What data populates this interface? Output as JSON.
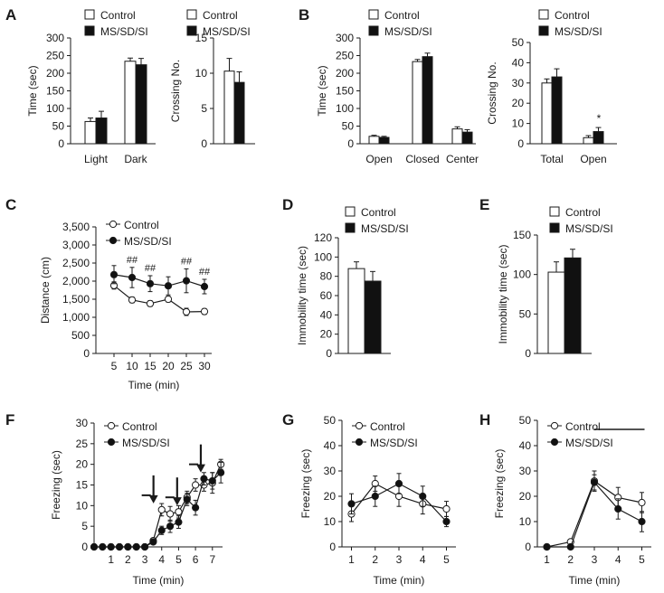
{
  "colors": {
    "control": "#ffffff",
    "treated": "#111111",
    "stroke": "#1a1a1a"
  },
  "chart_data": [
    {
      "id": "A1",
      "panel": "A",
      "type": "bar",
      "ylabel": "Time (sec)",
      "ylim": [
        0,
        300
      ],
      "yticks": [
        "0",
        "50",
        "100",
        "150",
        "200",
        "250",
        "300"
      ],
      "categories": [
        "Light",
        "Dark"
      ],
      "legend": [
        "Control",
        "MS/SD/SI"
      ],
      "series": [
        {
          "name": "Control",
          "values": [
            63,
            234
          ],
          "errors": [
            10,
            9
          ]
        },
        {
          "name": "MS/SD/SI",
          "values": [
            73,
            224
          ],
          "errors": [
            19,
            18
          ]
        }
      ]
    },
    {
      "id": "A2",
      "type": "bar",
      "ylabel": "Crossing No.",
      "ylim": [
        0,
        15
      ],
      "yticks": [
        "0",
        "5",
        "10",
        "15"
      ],
      "categories": [
        ""
      ],
      "legend": [
        "Control",
        "MS/SD/SI"
      ],
      "series": [
        {
          "name": "Control",
          "values": [
            10.3
          ],
          "errors": [
            1.8
          ]
        },
        {
          "name": "MS/SD/SI",
          "values": [
            8.7
          ],
          "errors": [
            1.5
          ]
        }
      ]
    },
    {
      "id": "B1",
      "panel": "B",
      "type": "bar",
      "ylabel": "Time (sec)",
      "ylim": [
        0,
        300
      ],
      "yticks": [
        "0",
        "50",
        "100",
        "150",
        "200",
        "250",
        "300"
      ],
      "categories": [
        "Open",
        "Closed",
        "Center"
      ],
      "legend": [
        "Control",
        "MS/SD/SI"
      ],
      "series": [
        {
          "name": "Control",
          "values": [
            21,
            233,
            42
          ],
          "errors": [
            3,
            6,
            6
          ]
        },
        {
          "name": "MS/SD/SI",
          "values": [
            18,
            247,
            33
          ],
          "errors": [
            3,
            10,
            7
          ]
        }
      ]
    },
    {
      "id": "B2",
      "type": "bar",
      "ylabel": "Crossing No.",
      "ylim": [
        0,
        50
      ],
      "yticks": [
        "0",
        "10",
        "20",
        "30",
        "40",
        "50"
      ],
      "categories": [
        "Total",
        "Open"
      ],
      "legend": [
        "Control",
        "MS/SD/SI"
      ],
      "annotations": [
        {
          "text": "*",
          "category": "Open"
        }
      ],
      "series": [
        {
          "name": "Control",
          "values": [
            30,
            3
          ],
          "errors": [
            2,
            1
          ]
        },
        {
          "name": "MS/SD/SI",
          "values": [
            33,
            6
          ],
          "errors": [
            4,
            2
          ]
        }
      ]
    },
    {
      "id": "C",
      "panel": "C",
      "type": "line",
      "xlabel": "Time (min)",
      "ylabel": "Distance (cm)",
      "ylim": [
        0,
        3500
      ],
      "xlim": [
        0,
        32
      ],
      "yticks": [
        "0",
        "500",
        "1,000",
        "1,500",
        "2,000",
        "2,500",
        "3,000",
        "3,500"
      ],
      "x": [
        5,
        10,
        15,
        20,
        25,
        30
      ],
      "xticks": [
        "5",
        "10",
        "15",
        "20",
        "25",
        "30"
      ],
      "legend": [
        "Control",
        "MS/SD/SI"
      ],
      "annotations": [
        "##",
        "##",
        "##",
        "##"
      ],
      "annotation_x": [
        10,
        15,
        25,
        30
      ],
      "series": [
        {
          "name": "Control",
          "values": [
            1880,
            1480,
            1380,
            1500,
            1150,
            1160
          ],
          "errors": [
            100,
            80,
            80,
            80,
            100,
            80
          ]
        },
        {
          "name": "MS/SD/SI",
          "values": [
            2180,
            2100,
            1930,
            1870,
            2010,
            1850
          ],
          "errors": [
            250,
            280,
            220,
            250,
            330,
            200
          ]
        }
      ]
    },
    {
      "id": "D",
      "panel": "D",
      "type": "bar",
      "ylabel": "Immobility time (sec)",
      "ylim": [
        0,
        120
      ],
      "yticks": [
        "0",
        "20",
        "40",
        "60",
        "80",
        "100",
        "120"
      ],
      "categories": [
        ""
      ],
      "legend": [
        "Control",
        "MS/SD/SI"
      ],
      "series": [
        {
          "name": "Control",
          "values": [
            88
          ],
          "errors": [
            7
          ]
        },
        {
          "name": "MS/SD/SI",
          "values": [
            75
          ],
          "errors": [
            10
          ]
        }
      ]
    },
    {
      "id": "E",
      "panel": "E",
      "type": "bar",
      "ylabel": "Immobility time (sec)",
      "ylim": [
        0,
        150
      ],
      "yticks": [
        "0",
        "50",
        "100",
        "150"
      ],
      "categories": [
        ""
      ],
      "legend": [
        "Control",
        "MS/SD/SI"
      ],
      "series": [
        {
          "name": "Control",
          "values": [
            103
          ],
          "errors": [
            13
          ]
        },
        {
          "name": "MS/SD/SI",
          "values": [
            121
          ],
          "errors": [
            11
          ]
        }
      ]
    },
    {
      "id": "F",
      "panel": "F",
      "type": "line",
      "xlabel": "Time (min)",
      "ylabel": "Freezing (sec)",
      "ylim": [
        0,
        30
      ],
      "xlim": [
        0,
        7.6
      ],
      "yticks": [
        "0",
        "5",
        "10",
        "15",
        "20",
        "25",
        "30"
      ],
      "xtick_values": [
        1,
        2,
        3,
        4,
        5,
        6,
        7
      ],
      "xticks": [
        "1",
        "2",
        "3",
        "4",
        "5",
        "6",
        "7"
      ],
      "legend": [
        "Control",
        "MS/SD/SI"
      ],
      "arrows_at": [
        3.3,
        4.7,
        6.1
      ],
      "x": [
        0,
        0.5,
        1,
        1.5,
        2,
        2.5,
        3,
        3.5,
        4,
        4.5,
        5,
        5.5,
        6,
        6.5,
        7,
        7.5
      ],
      "series": [
        {
          "name": "Control",
          "values": [
            0,
            0,
            0,
            0,
            0,
            0,
            0,
            1.5,
            9,
            8,
            8.5,
            12,
            15,
            15,
            15.5,
            20
          ],
          "errors": [
            0,
            0,
            0,
            0,
            0,
            0,
            0,
            0.5,
            1.5,
            1.8,
            1.5,
            1.5,
            1.5,
            1.5,
            2.5,
            1.2
          ]
        },
        {
          "name": "MS/SD/SI",
          "values": [
            0,
            0,
            0,
            0,
            0,
            0,
            0,
            1.2,
            4,
            5,
            6,
            11.5,
            9.5,
            16.5,
            16,
            18
          ],
          "errors": [
            0,
            0,
            0,
            0,
            0,
            0,
            0,
            0.5,
            1,
            1.5,
            1.5,
            1.5,
            1.8,
            1.5,
            2,
            2.5
          ]
        }
      ]
    },
    {
      "id": "G",
      "panel": "G",
      "type": "line",
      "xlabel": "Time (min)",
      "ylabel": "Freezing (sec)",
      "ylim": [
        0,
        50
      ],
      "xlim": [
        0.6,
        5.4
      ],
      "yticks": [
        "0",
        "10",
        "20",
        "30",
        "40",
        "50"
      ],
      "x": [
        1,
        2,
        3,
        4,
        5
      ],
      "xticks": [
        "1",
        "2",
        "3",
        "4",
        "5"
      ],
      "legend": [
        "Control",
        "MS/SD/SI"
      ],
      "series": [
        {
          "name": "Control",
          "values": [
            13,
            25,
            20,
            17,
            15
          ],
          "errors": [
            3,
            3,
            4,
            4,
            3
          ]
        },
        {
          "name": "MS/SD/SI",
          "values": [
            17,
            20,
            25,
            20,
            10
          ],
          "errors": [
            4,
            4,
            4,
            4,
            2
          ]
        }
      ]
    },
    {
      "id": "H",
      "panel": "H",
      "type": "line",
      "xlabel": "Time (min)",
      "ylabel": "Freezing (sec)",
      "ylim": [
        0,
        50
      ],
      "xlim": [
        0.6,
        5.4
      ],
      "yticks": [
        "0",
        "10",
        "20",
        "30",
        "40",
        "50"
      ],
      "x": [
        1,
        2,
        3,
        4,
        5
      ],
      "xticks": [
        "1",
        "2",
        "3",
        "4",
        "5"
      ],
      "legend": [
        "Control",
        "MS/SD/SI"
      ],
      "significance_bar": [
        3,
        5
      ],
      "series": [
        {
          "name": "Control",
          "values": [
            0,
            2,
            26,
            19.5,
            17.5
          ],
          "errors": [
            0,
            0.5,
            4,
            4,
            4
          ]
        },
        {
          "name": "MS/SD/SI",
          "values": [
            0,
            0,
            25.5,
            15,
            10
          ],
          "errors": [
            0,
            0,
            3,
            4,
            4
          ]
        }
      ]
    }
  ]
}
